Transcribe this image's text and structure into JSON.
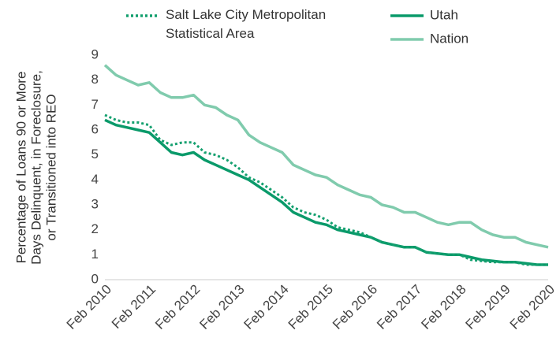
{
  "chart_data": {
    "type": "line",
    "ylabel": [
      "Percentage of Loans 90 or More",
      "Days Delinquent, in Foreclosure,",
      "or Transitioned into REO"
    ],
    "x": [
      "2010-02",
      "2010-05",
      "2010-08",
      "2010-11",
      "2011-02",
      "2011-05",
      "2011-08",
      "2011-11",
      "2012-02",
      "2012-05",
      "2012-08",
      "2012-11",
      "2013-02",
      "2013-05",
      "2013-08",
      "2013-11",
      "2014-02",
      "2014-05",
      "2014-08",
      "2014-11",
      "2015-02",
      "2015-05",
      "2015-08",
      "2015-11",
      "2016-02",
      "2016-05",
      "2016-08",
      "2016-11",
      "2017-02",
      "2017-05",
      "2017-08",
      "2017-11",
      "2018-02",
      "2018-05",
      "2018-08",
      "2018-11",
      "2019-02",
      "2019-05",
      "2019-08",
      "2019-11",
      "2020-02"
    ],
    "series": [
      {
        "name": "Salt Lake City Metropolitan Statistical Area",
        "color": "#14a06f",
        "dash": true,
        "values": [
          6.6,
          6.4,
          6.3,
          6.3,
          6.2,
          5.6,
          5.4,
          5.5,
          5.5,
          5.1,
          5.0,
          4.8,
          4.5,
          4.1,
          3.9,
          3.6,
          3.3,
          2.9,
          2.7,
          2.6,
          2.4,
          2.1,
          2.0,
          1.9,
          1.7,
          1.5,
          1.4,
          1.3,
          1.3,
          1.1,
          1.05,
          1.0,
          1.0,
          0.8,
          0.75,
          0.7,
          0.7,
          0.7,
          0.6,
          0.6,
          0.6
        ]
      },
      {
        "name": "Utah",
        "color": "#0a9a6a",
        "dash": false,
        "values": [
          6.4,
          6.2,
          6.1,
          6.0,
          5.9,
          5.5,
          5.1,
          5.0,
          5.1,
          4.8,
          4.6,
          4.4,
          4.2,
          4.0,
          3.7,
          3.4,
          3.1,
          2.7,
          2.5,
          2.3,
          2.2,
          2.0,
          1.9,
          1.8,
          1.7,
          1.5,
          1.4,
          1.3,
          1.3,
          1.1,
          1.05,
          1.0,
          1.0,
          0.9,
          0.8,
          0.75,
          0.7,
          0.7,
          0.65,
          0.6,
          0.6
        ]
      },
      {
        "name": "Nation",
        "color": "#80cbad",
        "dash": false,
        "values": [
          8.6,
          8.2,
          8.0,
          7.8,
          7.9,
          7.5,
          7.3,
          7.3,
          7.4,
          7.0,
          6.9,
          6.6,
          6.4,
          5.8,
          5.5,
          5.3,
          5.1,
          4.6,
          4.4,
          4.2,
          4.1,
          3.8,
          3.6,
          3.4,
          3.3,
          3.0,
          2.9,
          2.7,
          2.7,
          2.5,
          2.3,
          2.2,
          2.3,
          2.3,
          2.0,
          1.8,
          1.7,
          1.7,
          1.5,
          1.4,
          1.3
        ]
      }
    ],
    "xticks": [
      {
        "value": "2010-02",
        "label": "Feb 2010"
      },
      {
        "value": "2011-02",
        "label": "Feb 2011"
      },
      {
        "value": "2012-02",
        "label": "Feb 2012"
      },
      {
        "value": "2013-02",
        "label": "Feb 2013"
      },
      {
        "value": "2014-02",
        "label": "Feb 2014"
      },
      {
        "value": "2015-02",
        "label": "Feb 2015"
      },
      {
        "value": "2016-02",
        "label": "Feb 2016"
      },
      {
        "value": "2017-02",
        "label": "Feb 2017"
      },
      {
        "value": "2018-02",
        "label": "Feb 2018"
      },
      {
        "value": "2019-02",
        "label": "Feb 2019"
      },
      {
        "value": "2020-02",
        "label": "Feb 2020"
      }
    ],
    "ylim": [
      0,
      9
    ],
    "yticks": [
      0,
      1,
      2,
      3,
      4,
      5,
      6,
      7,
      8,
      9
    ],
    "grid": false
  }
}
